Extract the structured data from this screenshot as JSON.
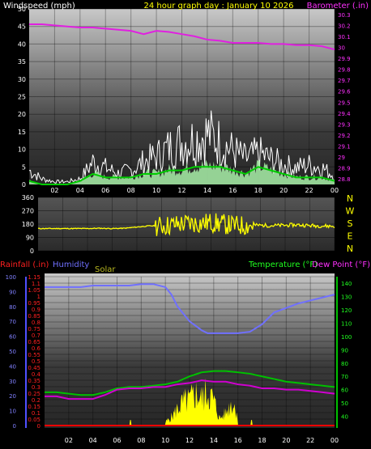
{
  "chart_data": [
    {
      "type": "line",
      "title": "24 hour graph day : January 10 2026",
      "left_axis_label": "Windspeed (mph)",
      "right_axis_label": "Barometer (.in)",
      "x_tick_labels": [
        "02",
        "04",
        "06",
        "08",
        "10",
        "12",
        "14",
        "16",
        "18",
        "20",
        "22",
        "00"
      ],
      "x_range": [
        0,
        24
      ],
      "left_ylim": [
        0,
        50
      ],
      "left_ticks": [
        "0",
        "5",
        "10",
        "15",
        "20",
        "25",
        "30",
        "35",
        "40",
        "45",
        "50"
      ],
      "right_ylim": [
        28.75,
        30.35
      ],
      "right_ticks": [
        "28.8",
        "28.9",
        "29",
        "29.1",
        "29.2",
        "29.3",
        "29.4",
        "29.5",
        "29.6",
        "29.7",
        "29.8",
        "29.9",
        "30",
        "30.1",
        "30.2",
        "30.3"
      ],
      "colors": {
        "gust": "#ffffff",
        "wind_fill": "#a8f0a8",
        "avg_wind": "#00cc00",
        "barometer": "#e020e0"
      },
      "series": [
        {
          "name": "barometer",
          "axis": "right",
          "x": [
            0,
            1,
            2,
            3,
            4,
            5,
            6,
            7,
            8,
            9,
            10,
            11,
            12,
            13,
            14,
            15,
            16,
            17,
            18,
            19,
            20,
            21,
            22,
            23,
            24
          ],
          "y": [
            30.21,
            30.21,
            30.2,
            30.19,
            30.18,
            30.18,
            30.17,
            30.16,
            30.15,
            30.12,
            30.15,
            30.14,
            30.12,
            30.1,
            30.07,
            30.06,
            30.04,
            30.04,
            30.04,
            30.03,
            30.03,
            30.02,
            30.02,
            30.01,
            29.98
          ]
        },
        {
          "name": "gust",
          "axis": "left",
          "x": [
            0,
            1,
            2,
            3,
            4,
            5,
            6,
            7,
            8,
            9,
            10,
            11,
            12,
            13,
            14,
            15,
            16,
            17,
            18,
            19,
            20,
            21,
            22,
            23,
            24
          ],
          "y": [
            5,
            2,
            1,
            1,
            2,
            8,
            6,
            4,
            5,
            8,
            10,
            13,
            15,
            16,
            18,
            15,
            12,
            9,
            11,
            9,
            7,
            6,
            7,
            6,
            3
          ]
        },
        {
          "name": "average_wind",
          "axis": "left",
          "x": [
            0,
            1,
            2,
            3,
            4,
            5,
            6,
            7,
            8,
            9,
            10,
            11,
            12,
            13,
            14,
            15,
            16,
            17,
            18,
            19,
            20,
            21,
            22,
            23,
            24
          ],
          "y": [
            1,
            0,
            0,
            0,
            1,
            3,
            2,
            2,
            2,
            3,
            3,
            4,
            4,
            5,
            5,
            5,
            4,
            3,
            5,
            4,
            3,
            2,
            2,
            2,
            1
          ]
        }
      ]
    },
    {
      "type": "line",
      "right_labels": [
        "N",
        "W",
        "S",
        "E",
        "N"
      ],
      "left_ticks": [
        "360",
        "270",
        "180",
        "90",
        "0"
      ],
      "ylim": [
        0,
        360
      ],
      "x_range": [
        0,
        24
      ],
      "color": "#ffff00",
      "series": [
        {
          "name": "wind_direction",
          "x": [
            0,
            1,
            2,
            3,
            4,
            5,
            6,
            7,
            8,
            9,
            10,
            11,
            12,
            13,
            14,
            15,
            16,
            17,
            18,
            19,
            20,
            21,
            22,
            23,
            24
          ],
          "y": [
            150,
            150,
            150,
            150,
            150,
            152,
            150,
            152,
            160,
            168,
            168,
            175,
            185,
            185,
            190,
            180,
            170,
            172,
            172,
            170,
            172,
            175,
            170,
            168,
            165
          ]
        }
      ]
    },
    {
      "type": "line",
      "labels": {
        "rainfall": "Rainfall (.in)",
        "humidity": "Humidity",
        "solar": "Solar",
        "temperature": "Temperature (°F)",
        "dewpoint": "Dew Point (°F)"
      },
      "x_tick_labels": [
        "02",
        "04",
        "06",
        "08",
        "10",
        "12",
        "14",
        "16",
        "18",
        "20",
        "22",
        "00"
      ],
      "x_range": [
        0,
        24
      ],
      "humidity_ticks": [
        "0",
        "10",
        "20",
        "30",
        "40",
        "50",
        "60",
        "70",
        "80",
        "90",
        "100"
      ],
      "rain_ticks": [
        "0",
        "0.05",
        "0.1",
        "0.15",
        "0.2",
        "0.25",
        "0.3",
        "0.35",
        "0.4",
        "0.45",
        "0.5",
        "0.55",
        "0.6",
        "0.65",
        "0.7",
        "0.75",
        "0.8",
        "0.85",
        "0.9",
        "0.95",
        "1",
        "1.05",
        "1.1",
        "1.15"
      ],
      "temp_ticks": [
        "40",
        "50",
        "60",
        "70",
        "80",
        "90",
        "100",
        "110",
        "120",
        "130",
        "140"
      ],
      "humidity_ylim": [
        0,
        100
      ],
      "temp_ylim": [
        33,
        145
      ],
      "colors": {
        "humidity": "#7070ff",
        "temperature": "#00c000",
        "dewpoint": "#d000d0",
        "solar": "#ffff00",
        "rain": "#ff0000",
        "rain_label": "#ff2020",
        "solar_label": "#b8b820",
        "temp_label": "#20ff20",
        "dew_label": "#ff30ff"
      },
      "series": [
        {
          "name": "humidity",
          "x": [
            0,
            1,
            2,
            3,
            4,
            5,
            6,
            7,
            8,
            9,
            10,
            10.5,
            11,
            12,
            13,
            13.5,
            14,
            15,
            16,
            17,
            18,
            19,
            20,
            21,
            22,
            23,
            24
          ],
          "y": [
            93,
            93,
            93,
            93,
            94,
            94,
            94,
            94,
            95,
            95,
            93,
            88,
            80,
            70,
            64,
            62,
            62,
            62,
            62,
            63,
            68,
            76,
            79,
            82,
            84,
            86,
            88
          ]
        },
        {
          "name": "temperature",
          "x": [
            0,
            1,
            2,
            3,
            4,
            5,
            6,
            7,
            8,
            9,
            10,
            11,
            12,
            13,
            14,
            15,
            16,
            17,
            18,
            19,
            20,
            21,
            22,
            23,
            24
          ],
          "y": [
            58,
            58,
            57,
            56,
            56,
            58,
            61,
            62,
            62,
            63,
            64,
            66,
            70,
            73,
            74,
            74,
            73,
            72,
            70,
            68,
            66,
            65,
            64,
            63,
            62
          ]
        },
        {
          "name": "dew_point",
          "x": [
            0,
            1,
            2,
            3,
            4,
            5,
            6,
            7,
            8,
            9,
            10,
            11,
            12,
            13,
            14,
            15,
            16,
            17,
            18,
            19,
            20,
            21,
            22,
            23,
            24
          ],
          "y": [
            55,
            55,
            53,
            53,
            53,
            56,
            60,
            61,
            61,
            62,
            62,
            64,
            65,
            67,
            66,
            66,
            64,
            63,
            61,
            61,
            60,
            60,
            59,
            58,
            57
          ]
        },
        {
          "name": "solar",
          "x": [
            7.1,
            10,
            10.5,
            11,
            11.5,
            12,
            12.5,
            13,
            13.5,
            14,
            14.5,
            15,
            15.5,
            16,
            17.1
          ],
          "y": [
            4,
            4,
            10,
            20,
            28,
            30,
            38,
            32,
            40,
            30,
            8,
            15,
            28,
            15,
            5
          ]
        }
      ]
    }
  ]
}
